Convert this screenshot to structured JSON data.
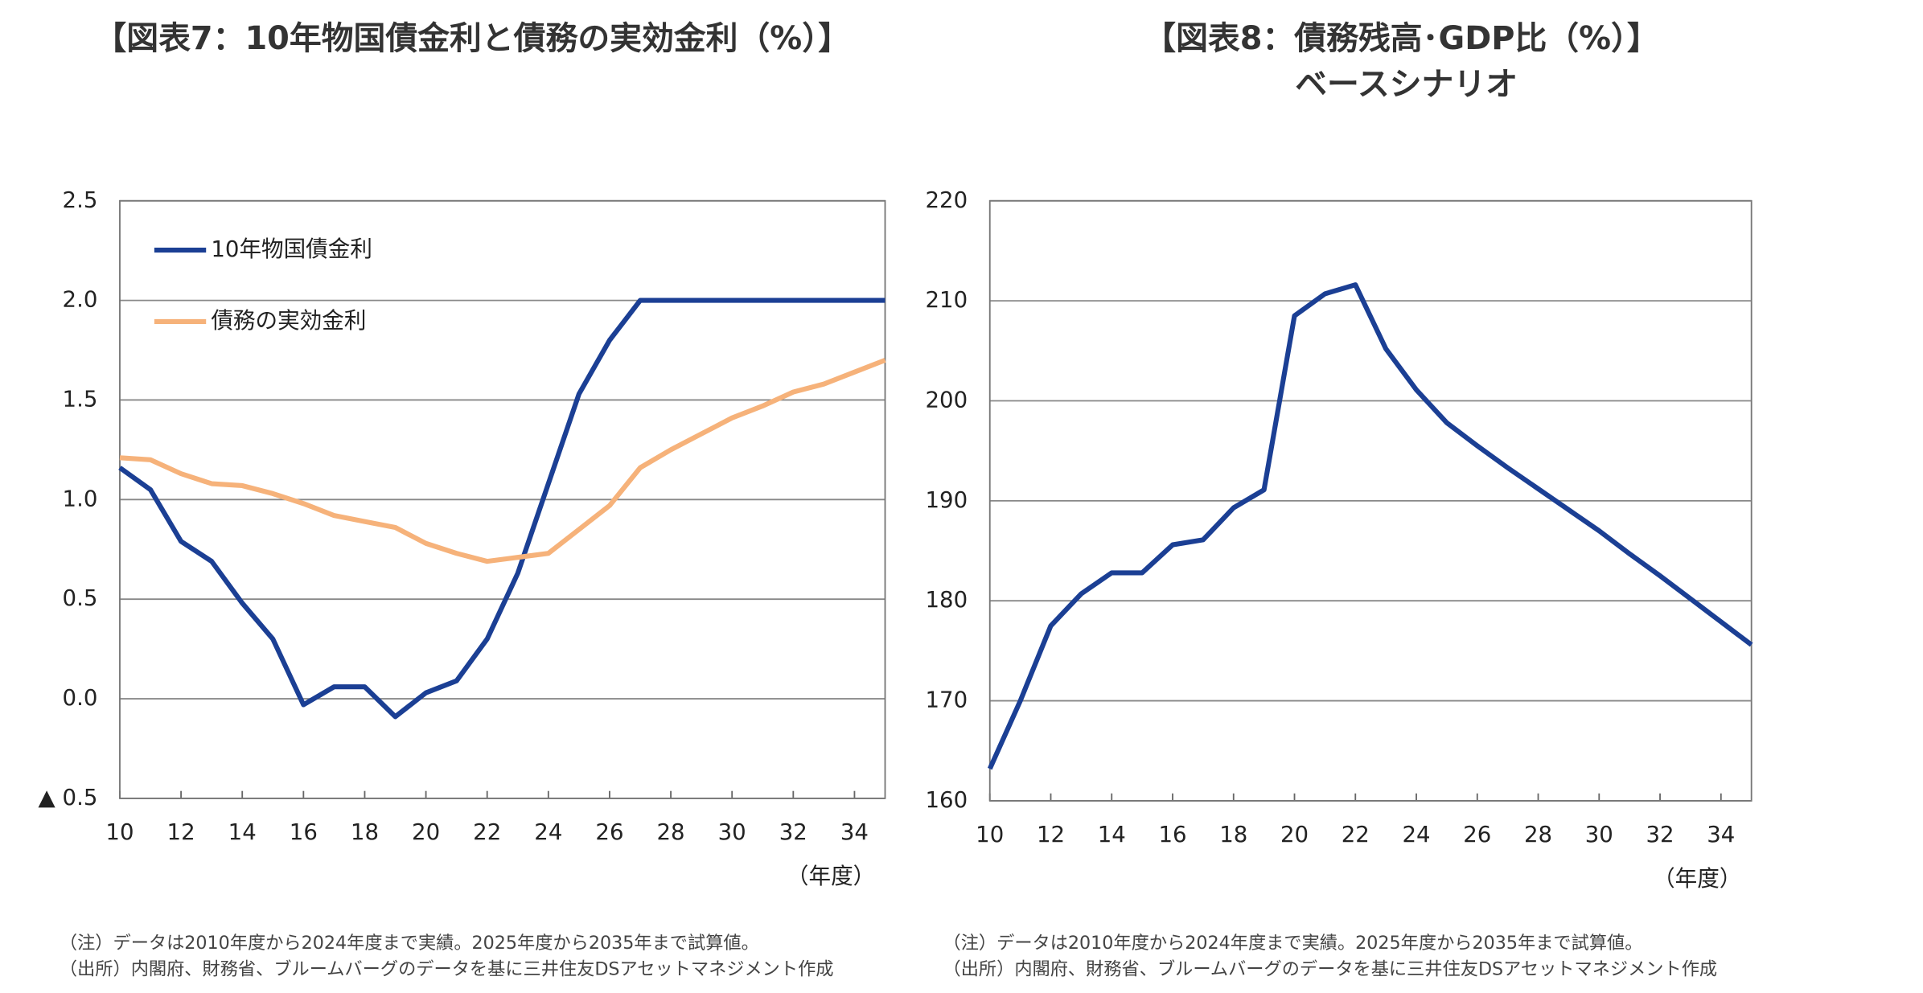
{
  "chart_data": [
    {
      "type": "line",
      "title": "【図表7：10年物国債金利と債務の実効金利（%）】",
      "x": [
        10,
        11,
        12,
        13,
        14,
        15,
        16,
        17,
        18,
        19,
        20,
        21,
        22,
        23,
        24,
        25,
        26,
        27,
        28,
        29,
        30,
        31,
        32,
        33,
        34,
        35
      ],
      "series": [
        {
          "name": "10年物国債金利",
          "color": "#1b3f94",
          "values": [
            1.16,
            1.05,
            0.79,
            0.69,
            0.48,
            0.3,
            -0.03,
            0.06,
            0.06,
            -0.09,
            0.03,
            0.09,
            0.3,
            0.63,
            1.08,
            1.53,
            1.8,
            2.0,
            2.0,
            2.0,
            2.0,
            2.0,
            2.0,
            2.0,
            2.0,
            2.0
          ]
        },
        {
          "name": "債務の実効金利",
          "color": "#f6b27a",
          "values": [
            1.21,
            1.2,
            1.13,
            1.08,
            1.07,
            1.03,
            0.98,
            0.92,
            0.89,
            0.86,
            0.78,
            0.73,
            0.69,
            0.71,
            0.73,
            0.85,
            0.97,
            1.16,
            1.25,
            1.33,
            1.41,
            1.47,
            1.54,
            1.58,
            1.64,
            1.7
          ]
        }
      ],
      "xlim": [
        10,
        35
      ],
      "xticks": [
        10,
        12,
        14,
        16,
        18,
        20,
        22,
        24,
        26,
        28,
        30,
        32,
        34
      ],
      "ylim": [
        -0.5,
        2.5
      ],
      "yticks": [
        {
          "value": -0.5,
          "label": "▲ 0.5"
        },
        {
          "value": 0,
          "label": "0.0"
        },
        0.5,
        {
          "value": 1,
          "label": "1.0"
        },
        1.5,
        {
          "value": 2,
          "label": "2.0"
        },
        2.5
      ],
      "x_label": "（年度）",
      "grid": true,
      "legend": "upper left",
      "notes": [
        "（注）データは2010年度から2024年度まで実績。2025年度から2035年まで試算値。",
        "（出所）内閣府、財務省、ブルームバーグのデータを基に三井住友DSアセットマネジメント作成"
      ]
    },
    {
      "type": "line",
      "title": "【図表8：債務残高･GDP比（%）】",
      "subtitle": "ベースシナリオ",
      "x": [
        10,
        11,
        12,
        13,
        14,
        15,
        16,
        17,
        18,
        19,
        20,
        21,
        22,
        23,
        24,
        25,
        26,
        27,
        28,
        29,
        30,
        31,
        32,
        33,
        34,
        35
      ],
      "series": [
        {
          "color": "#1b3f94",
          "values": [
            163.2,
            170.0,
            177.5,
            180.7,
            182.8,
            182.8,
            185.6,
            186.1,
            189.3,
            191.1,
            208.5,
            210.7,
            211.6,
            205.2,
            201.1,
            197.8,
            195.5,
            193.3,
            191.2,
            189.1,
            187.0,
            184.7,
            182.5,
            180.2,
            177.9,
            175.6
          ]
        }
      ],
      "xlim": [
        10,
        35
      ],
      "xticks": [
        10,
        12,
        14,
        16,
        18,
        20,
        22,
        24,
        26,
        28,
        30,
        32,
        34
      ],
      "ylim": [
        160,
        220
      ],
      "yticks": [
        160,
        170,
        180,
        190,
        200,
        210,
        220
      ],
      "x_label": "（年度）",
      "grid": true,
      "notes": [
        "（注）データは2010年度から2024年度まで実績。2025年度から2035年まで試算値。",
        "（出所）内閣府、財務省、ブルームバーグのデータを基に三井住友DSアセットマネジメント作成"
      ]
    }
  ]
}
